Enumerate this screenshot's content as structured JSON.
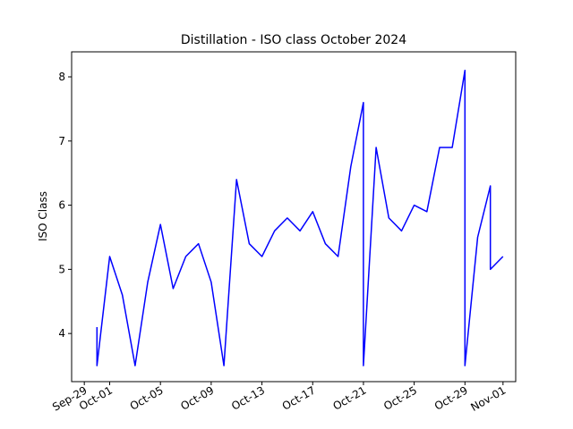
{
  "chart_data": {
    "type": "line",
    "title": "Distillation - ISO class October 2024",
    "y_label": "ISO Class",
    "x": [
      "2024-09-30",
      "2024-09-30",
      "2024-10-01",
      "2024-10-02",
      "2024-10-03",
      "2024-10-04",
      "2024-10-05",
      "2024-10-06",
      "2024-10-07",
      "2024-10-08",
      "2024-10-09",
      "2024-10-10",
      "2024-10-11",
      "2024-10-12",
      "2024-10-13",
      "2024-10-14",
      "2024-10-15",
      "2024-10-16",
      "2024-10-17",
      "2024-10-18",
      "2024-10-19",
      "2024-10-20",
      "2024-10-21",
      "2024-10-21",
      "2024-10-22",
      "2024-10-23",
      "2024-10-24",
      "2024-10-25",
      "2024-10-26",
      "2024-10-27",
      "2024-10-28",
      "2024-10-29",
      "2024-10-29",
      "2024-10-30",
      "2024-10-31",
      "2024-10-31",
      "2024-11-01"
    ],
    "series": [
      {
        "name": "ISO Class",
        "color": "#0000ff",
        "values": [
          4.1,
          3.5,
          5.2,
          4.6,
          3.5,
          4.8,
          5.7,
          4.7,
          5.2,
          5.4,
          4.8,
          3.5,
          6.4,
          5.4,
          5.2,
          5.6,
          5.8,
          5.6,
          5.9,
          5.4,
          5.2,
          6.6,
          7.6,
          3.5,
          6.9,
          5.8,
          5.6,
          6.0,
          5.9,
          6.9,
          6.9,
          8.1,
          3.5,
          5.5,
          6.3,
          5.0,
          5.2
        ]
      }
    ],
    "xlim": [
      "2024-09-28",
      "2024-11-02"
    ],
    "xticks": [
      {
        "value": "2024-09-29",
        "label": "Sep-29"
      },
      {
        "value": "2024-10-01",
        "label": "Oct-01"
      },
      {
        "value": "2024-10-05",
        "label": "Oct-05"
      },
      {
        "value": "2024-10-09",
        "label": "Oct-09"
      },
      {
        "value": "2024-10-13",
        "label": "Oct-13"
      },
      {
        "value": "2024-10-17",
        "label": "Oct-17"
      },
      {
        "value": "2024-10-21",
        "label": "Oct-21"
      },
      {
        "value": "2024-10-25",
        "label": "Oct-25"
      },
      {
        "value": "2024-10-29",
        "label": "Oct-29"
      },
      {
        "value": "2024-11-01",
        "label": "Nov-01"
      }
    ],
    "ylim": [
      3.25,
      8.39
    ],
    "yticks": [
      4,
      5,
      6,
      7,
      8
    ],
    "grid": false
  }
}
